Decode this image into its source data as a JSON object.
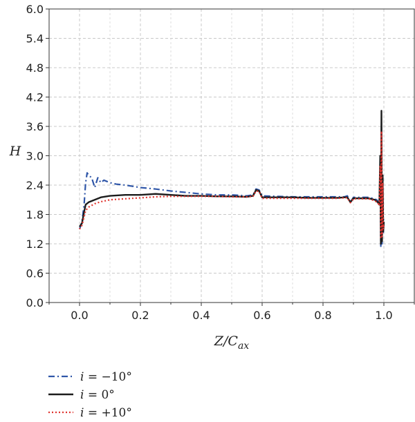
{
  "chart_data": {
    "type": "line",
    "xlabel": "Z/C",
    "xlabel_sub": "ax",
    "ylabel": "H",
    "xlim": [
      -0.1,
      1.1
    ],
    "ylim": [
      0.0,
      6.0
    ],
    "xticks": [
      0.0,
      0.2,
      0.4,
      0.6,
      0.8,
      1.0
    ],
    "xtick_labels": [
      "0.0",
      "0.2",
      "0.4",
      "0.6",
      "0.8",
      "1.0"
    ],
    "yticks": [
      0.0,
      0.6,
      1.2,
      1.8,
      2.4,
      3.0,
      3.6,
      4.2,
      4.8,
      5.4,
      6.0
    ],
    "ytick_labels": [
      "0.0",
      "0.6",
      "1.2",
      "1.8",
      "2.4",
      "3.0",
      "3.6",
      "4.2",
      "4.8",
      "5.4",
      "6.0"
    ],
    "grid": true,
    "legend_position": "bottom-left, below plot",
    "series": [
      {
        "name": "i = −10°",
        "name_var": "i",
        "name_rest": " = −10°",
        "color": "#2f56a8",
        "style": "dashdot",
        "x": [
          0.0,
          0.008,
          0.015,
          0.02,
          0.025,
          0.03,
          0.04,
          0.05,
          0.06,
          0.07,
          0.08,
          0.1,
          0.12,
          0.15,
          0.2,
          0.25,
          0.3,
          0.35,
          0.4,
          0.45,
          0.5,
          0.55,
          0.57,
          0.58,
          0.59,
          0.6,
          0.65,
          0.7,
          0.75,
          0.8,
          0.85,
          0.87,
          0.88,
          0.89,
          0.9,
          0.95,
          0.97,
          0.98,
          0.985,
          0.988,
          0.99,
          0.992,
          0.994,
          0.996,
          0.998,
          1.0
        ],
        "y": [
          1.5,
          1.65,
          2.0,
          2.45,
          2.65,
          2.6,
          2.55,
          2.35,
          2.55,
          2.45,
          2.5,
          2.45,
          2.42,
          2.4,
          2.35,
          2.32,
          2.28,
          2.25,
          2.22,
          2.2,
          2.2,
          2.18,
          2.2,
          2.32,
          2.3,
          2.18,
          2.17,
          2.16,
          2.16,
          2.16,
          2.16,
          2.16,
          2.18,
          2.05,
          2.15,
          2.15,
          2.12,
          2.08,
          2.0,
          2.6,
          1.15,
          3.6,
          1.2,
          2.55,
          1.4,
          1.7
        ]
      },
      {
        "name": "i = 0°",
        "name_var": "i",
        "name_rest": " = 0°",
        "color": "#1c1c1c",
        "style": "solid",
        "x": [
          0.0,
          0.008,
          0.015,
          0.02,
          0.03,
          0.05,
          0.07,
          0.1,
          0.15,
          0.2,
          0.25,
          0.3,
          0.35,
          0.4,
          0.45,
          0.5,
          0.55,
          0.57,
          0.58,
          0.59,
          0.6,
          0.65,
          0.7,
          0.75,
          0.8,
          0.85,
          0.87,
          0.88,
          0.89,
          0.9,
          0.95,
          0.97,
          0.98,
          0.985,
          0.988,
          0.99,
          0.992,
          0.994,
          0.996,
          0.998,
          1.0
        ],
        "y": [
          1.55,
          1.62,
          1.85,
          2.0,
          2.05,
          2.1,
          2.15,
          2.18,
          2.2,
          2.2,
          2.22,
          2.2,
          2.18,
          2.18,
          2.17,
          2.17,
          2.16,
          2.18,
          2.3,
          2.28,
          2.15,
          2.15,
          2.15,
          2.14,
          2.14,
          2.14,
          2.15,
          2.15,
          2.05,
          2.13,
          2.13,
          2.1,
          2.05,
          2.0,
          3.0,
          1.2,
          3.92,
          1.25,
          2.6,
          1.45,
          1.65
        ]
      },
      {
        "name": "i = +10°",
        "name_var": "i",
        "name_rest": " = +10°",
        "color": "#e0332e",
        "style": "dotted",
        "x": [
          0.0,
          0.008,
          0.015,
          0.02,
          0.03,
          0.05,
          0.07,
          0.1,
          0.15,
          0.2,
          0.25,
          0.3,
          0.35,
          0.4,
          0.45,
          0.5,
          0.55,
          0.57,
          0.58,
          0.59,
          0.6,
          0.65,
          0.7,
          0.75,
          0.8,
          0.85,
          0.87,
          0.88,
          0.89,
          0.9,
          0.95,
          0.97,
          0.98,
          0.985,
          0.988,
          0.99,
          0.992,
          0.994,
          0.996,
          0.998,
          1.0
        ],
        "y": [
          1.5,
          1.58,
          1.75,
          1.88,
          1.95,
          2.02,
          2.06,
          2.1,
          2.12,
          2.14,
          2.16,
          2.17,
          2.17,
          2.17,
          2.17,
          2.16,
          2.16,
          2.17,
          2.28,
          2.27,
          2.13,
          2.13,
          2.13,
          2.13,
          2.13,
          2.13,
          2.14,
          2.14,
          2.04,
          2.12,
          2.12,
          2.08,
          2.04,
          1.98,
          2.8,
          1.3,
          3.5,
          1.35,
          2.45,
          1.5,
          1.6
        ]
      }
    ]
  }
}
